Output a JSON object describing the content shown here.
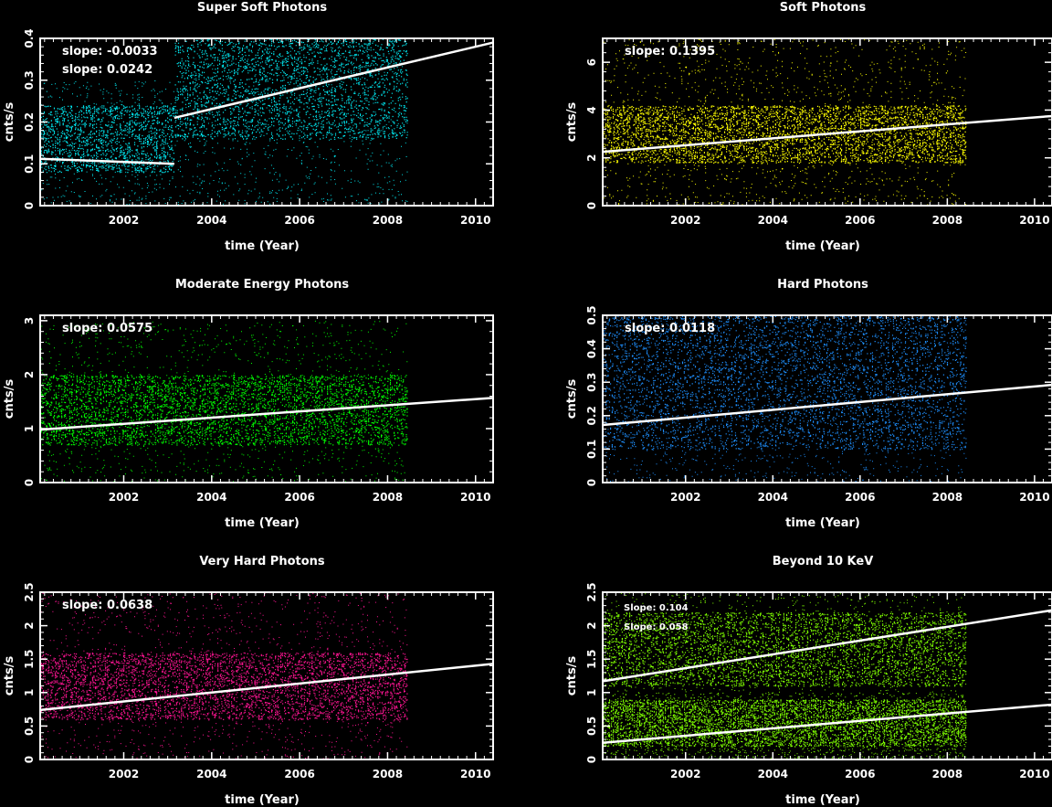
{
  "chart_data": [
    {
      "type": "scatter",
      "title": "Super Soft Photons",
      "xlabel": "time (Year)",
      "ylabel": "cnts/s",
      "xlim": [
        2000.1,
        2010.4
      ],
      "ylim": [
        0,
        0.4
      ],
      "xticks": [
        2002,
        2004,
        2006,
        2008,
        2010
      ],
      "yticks": [
        0,
        0.1,
        0.2,
        0.3,
        0.4
      ],
      "color": "#00e5ee",
      "data_range": [
        2000.1,
        2008.45
      ],
      "bands": [
        {
          "x": [
            2000.1,
            2003.15
          ],
          "dense": [
            0.08,
            0.24
          ],
          "sparse": [
            0.0,
            0.3
          ]
        },
        {
          "x": [
            2003.15,
            2008.45
          ],
          "dense": [
            0.16,
            0.4
          ],
          "sparse": [
            0.0,
            0.4
          ]
        }
      ],
      "fit_lines": [
        {
          "x": [
            2000.1,
            2003.15
          ],
          "y": [
            0.112,
            0.1
          ]
        },
        {
          "x": [
            2003.15,
            2010.4
          ],
          "y": [
            0.21,
            0.39
          ]
        }
      ],
      "annotations": [
        "slope: -0.0033",
        "slope: 0.0242"
      ]
    },
    {
      "type": "scatter",
      "title": "Soft Photons",
      "xlabel": "time (Year)",
      "ylabel": "cnts/s",
      "xlim": [
        2000.1,
        2010.4
      ],
      "ylim": [
        0,
        7.0
      ],
      "xticks": [
        2002,
        2004,
        2006,
        2008,
        2010
      ],
      "yticks": [
        0,
        2,
        4,
        6
      ],
      "color": "#ffff00",
      "data_range": [
        2000.1,
        2008.45
      ],
      "bands": [
        {
          "x": [
            2000.1,
            2008.45
          ],
          "dense": [
            1.8,
            4.2
          ],
          "sparse": [
            0.0,
            7.0
          ]
        }
      ],
      "fit_lines": [
        {
          "x": [
            2000.1,
            2010.4
          ],
          "y": [
            2.25,
            3.75
          ]
        }
      ],
      "annotations": [
        "slope: 0.1395"
      ]
    },
    {
      "type": "scatter",
      "title": "Moderate Energy Photons",
      "xlabel": "time (Year)",
      "ylabel": "cnts/s",
      "xlim": [
        2000.1,
        2010.4
      ],
      "ylim": [
        0,
        3.1
      ],
      "xticks": [
        2002,
        2004,
        2006,
        2008,
        2010
      ],
      "yticks": [
        0,
        1,
        2,
        3
      ],
      "color": "#00ff00",
      "data_range": [
        2000.1,
        2008.45
      ],
      "bands": [
        {
          "x": [
            2000.1,
            2008.45
          ],
          "dense": [
            0.7,
            2.0
          ],
          "sparse": [
            0.0,
            3.0
          ]
        }
      ],
      "fit_lines": [
        {
          "x": [
            2000.1,
            2010.4
          ],
          "y": [
            0.98,
            1.57
          ]
        }
      ],
      "annotations": [
        "slope: 0.0575"
      ]
    },
    {
      "type": "scatter",
      "title": "Hard Photons",
      "xlabel": "time (Year)",
      "ylabel": "cnts/s",
      "xlim": [
        2000.1,
        2010.4
      ],
      "ylim": [
        0,
        0.5
      ],
      "xticks": [
        2002,
        2004,
        2006,
        2008,
        2010
      ],
      "yticks": [
        0,
        0.1,
        0.2,
        0.3,
        0.4,
        0.5
      ],
      "color": "#1e90ff",
      "data_range": [
        2000.1,
        2008.45
      ],
      "bands": [
        {
          "x": [
            2000.1,
            2008.45
          ],
          "dense": [
            0.1,
            0.5
          ],
          "sparse": [
            0.0,
            0.5
          ]
        }
      ],
      "fit_lines": [
        {
          "x": [
            2000.1,
            2010.4
          ],
          "y": [
            0.172,
            0.292
          ]
        }
      ],
      "annotations": [
        "slope: 0.0118"
      ]
    },
    {
      "type": "scatter",
      "title": "Very Hard  Photons",
      "xlabel": "time (Year)",
      "ylabel": "cnts/s",
      "xlim": [
        2000.1,
        2010.4
      ],
      "ylim": [
        0,
        2.5
      ],
      "xticks": [
        2002,
        2004,
        2006,
        2008,
        2010
      ],
      "yticks": [
        0,
        0.5,
        1,
        1.5,
        2,
        2.5
      ],
      "color": "#ff1493",
      "data_range": [
        2000.1,
        2008.45
      ],
      "bands": [
        {
          "x": [
            2000.1,
            2008.45
          ],
          "dense": [
            0.6,
            1.6
          ],
          "sparse": [
            0.0,
            2.5
          ]
        }
      ],
      "fit_lines": [
        {
          "x": [
            2000.1,
            2010.4
          ],
          "y": [
            0.74,
            1.43
          ]
        }
      ],
      "annotations": [
        "slope: 0.0638"
      ]
    },
    {
      "type": "scatter",
      "title": "Beyond 10 KeV",
      "xlabel": "time (Year)",
      "ylabel": "cnts/s",
      "xlim": [
        2000.1,
        2010.4
      ],
      "ylim": [
        0,
        2.5
      ],
      "xticks": [
        2002,
        2004,
        2006,
        2008,
        2010
      ],
      "yticks": [
        0,
        0.5,
        1,
        1.5,
        2,
        2.5
      ],
      "color": "#7fff00",
      "data_range": [
        2000.1,
        2008.45
      ],
      "bands": [
        {
          "x": [
            2000.1,
            2008.45
          ],
          "dense": [
            1.1,
            2.2
          ],
          "sparse": [
            0.0,
            2.5
          ]
        },
        {
          "x": [
            2000.1,
            2008.45
          ],
          "dense": [
            0.2,
            0.9
          ],
          "sparse": [
            0.0,
            1.0
          ]
        }
      ],
      "fit_lines": [
        {
          "x": [
            2000.1,
            2010.4
          ],
          "y": [
            1.17,
            2.23
          ]
        },
        {
          "x": [
            2000.1,
            2010.4
          ],
          "y": [
            0.25,
            0.82
          ]
        }
      ],
      "annotations": [
        "Slope: 0.104",
        "Slope: 0.058"
      ]
    }
  ]
}
